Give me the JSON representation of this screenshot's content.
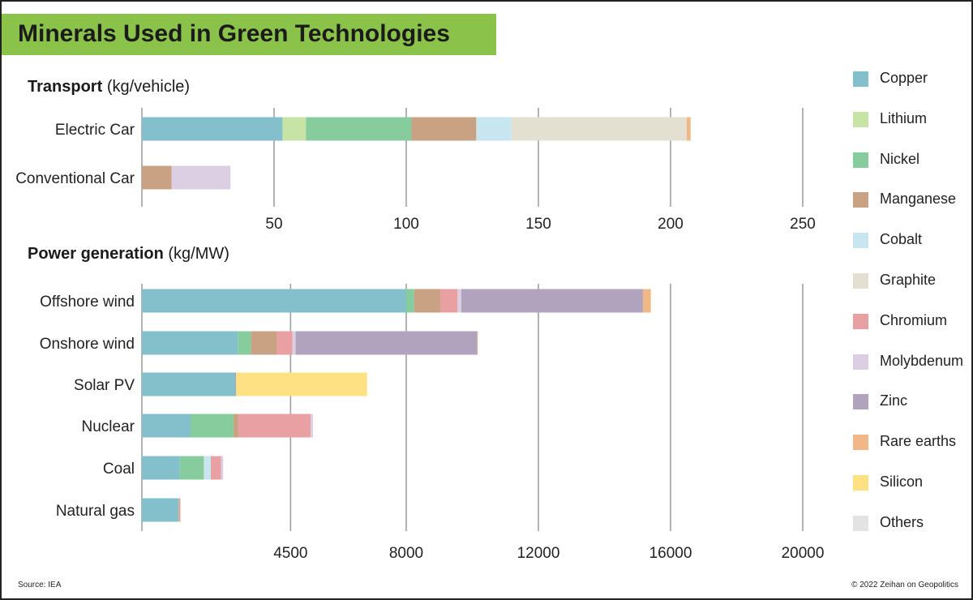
{
  "title": "Minerals Used in Green Technologies",
  "source": "Source: IEA",
  "copyright": "© 2022 Zeihan on Geopolitics",
  "colors": {
    "title_bg": "#8bc34a",
    "Copper": "#84bfcc",
    "Lithium": "#c8e3a6",
    "Nickel": "#86cc9c",
    "Manganese": "#c8a283",
    "Cobalt": "#c8e6ef",
    "Graphite": "#e3e0d1",
    "Chromium": "#e8a0a3",
    "Molybdenum": "#dccfe3",
    "Zinc": "#b1a3bd",
    "Rare earths": "#f1b887",
    "Silicon": "#fde183",
    "Others": "#e3e3e3"
  },
  "legend": [
    "Copper",
    "Lithium",
    "Nickel",
    "Manganese",
    "Cobalt",
    "Graphite",
    "Chromium",
    "Molybdenum",
    "Zinc",
    "Rare earths",
    "Silicon",
    "Others"
  ],
  "chart_data": [
    {
      "type": "bar",
      "orientation": "horizontal",
      "stacked": true,
      "title_bold": "Transport",
      "title_unit": "(kg/vehicle)",
      "xlim": [
        0,
        250
      ],
      "xticks": [
        50,
        100,
        150,
        200,
        250
      ],
      "grid": true,
      "categories": [
        "Electric Car",
        "Conventional Car"
      ],
      "series": [
        {
          "name": "Copper",
          "values": [
            53.2,
            0
          ]
        },
        {
          "name": "Lithium",
          "values": [
            8.9,
            0
          ]
        },
        {
          "name": "Nickel",
          "values": [
            39.9,
            0
          ]
        },
        {
          "name": "Manganese",
          "values": [
            24.5,
            11.2
          ]
        },
        {
          "name": "Cobalt",
          "values": [
            13.3,
            0
          ]
        },
        {
          "name": "Graphite",
          "values": [
            66.3,
            0
          ]
        },
        {
          "name": "Molybdenum",
          "values": [
            0,
            22.3
          ]
        },
        {
          "name": "Rare earths",
          "values": [
            1.5,
            0
          ]
        }
      ]
    },
    {
      "type": "bar",
      "orientation": "horizontal",
      "stacked": true,
      "title_bold": "Power generation",
      "title_unit": "(kg/MW)",
      "xlim": [
        0,
        20000
      ],
      "xticks": [
        4500,
        8000,
        12000,
        16000,
        20000
      ],
      "grid": true,
      "categories": [
        "Offshore wind",
        "Onshore wind",
        "Solar PV",
        "Nuclear",
        "Coal",
        "Natural gas"
      ],
      "series": [
        {
          "name": "Copper",
          "values": [
            8000,
            2900,
            2822,
            1473,
            1150,
            1100
          ]
        },
        {
          "name": "Lithium",
          "values": [
            0,
            0,
            0,
            0,
            0,
            0
          ]
        },
        {
          "name": "Nickel",
          "values": [
            240,
            404,
            1,
            1297,
            721,
            16
          ]
        },
        {
          "name": "Manganese",
          "values": [
            790,
            780,
            0,
            148,
            5,
            0
          ]
        },
        {
          "name": "Cobalt",
          "values": [
            0,
            0,
            0,
            0,
            210,
            0
          ]
        },
        {
          "name": "Graphite",
          "values": [
            0,
            0,
            0,
            0,
            0,
            0
          ]
        },
        {
          "name": "Chromium",
          "values": [
            525,
            470,
            0,
            2190,
            308,
            48
          ]
        },
        {
          "name": "Molybdenum",
          "values": [
            109,
            99,
            0,
            70,
            66,
            0
          ]
        },
        {
          "name": "Zinc",
          "values": [
            5500,
            5500,
            30,
            0,
            0,
            0
          ]
        },
        {
          "name": "Rare earths",
          "values": [
            239,
            14,
            0,
            0,
            0,
            0
          ]
        },
        {
          "name": "Silicon",
          "values": [
            0,
            0,
            3960,
            0,
            0,
            0
          ]
        },
        {
          "name": "Others",
          "values": [
            0,
            0,
            0,
            0,
            0,
            0
          ]
        }
      ]
    }
  ]
}
